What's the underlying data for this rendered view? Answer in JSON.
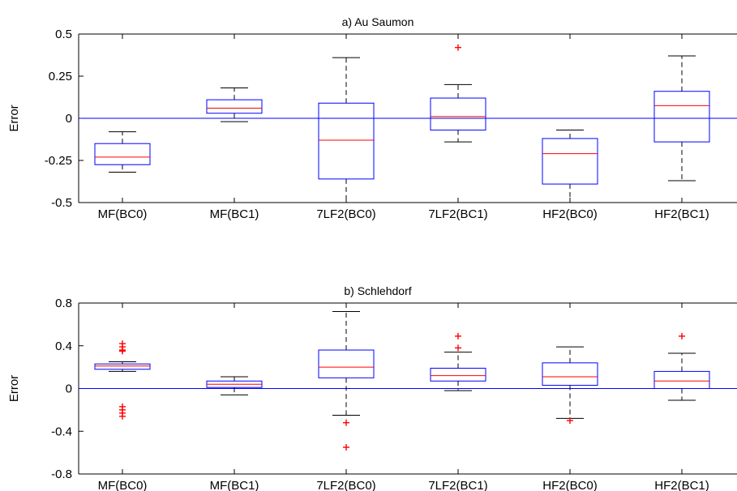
{
  "chart_data": [
    {
      "type": "box",
      "title": "a) Au Saumon",
      "ylabel": "Error",
      "xlabel": "",
      "ylim": [
        -0.5,
        0.5
      ],
      "yticks": [
        -0.5,
        -0.25,
        0,
        0.25,
        0.5
      ],
      "ytick_labels": [
        "-0.5",
        "-0.25",
        "0",
        "0.25",
        "0.5"
      ],
      "grid": false,
      "reference_line": 0,
      "categories": [
        "MF(BC0)",
        "MF(BC1)",
        "7LF2(BC0)",
        "7LF2(BC1)",
        "HF2(BC0)",
        "HF2(BC1)"
      ],
      "boxes": [
        {
          "whisker_low": -0.32,
          "q1": -0.275,
          "median": -0.23,
          "q3": -0.15,
          "whisker_high": -0.08,
          "outliers": []
        },
        {
          "whisker_low": -0.02,
          "q1": 0.03,
          "median": 0.06,
          "q3": 0.11,
          "whisker_high": 0.18,
          "outliers": []
        },
        {
          "whisker_low": -0.5,
          "q1": -0.36,
          "median": -0.13,
          "q3": 0.09,
          "whisker_high": 0.36,
          "outliers": []
        },
        {
          "whisker_low": -0.14,
          "q1": -0.07,
          "median": 0.01,
          "q3": 0.12,
          "whisker_high": 0.2,
          "outliers": [
            0.42
          ]
        },
        {
          "whisker_low": -0.5,
          "q1": -0.39,
          "median": -0.21,
          "q3": -0.12,
          "whisker_high": -0.07,
          "outliers": []
        },
        {
          "whisker_low": -0.37,
          "q1": -0.14,
          "median": 0.075,
          "q3": 0.16,
          "whisker_high": 0.37,
          "outliers": []
        }
      ],
      "colors": {
        "box": "#0000ff",
        "median": "#ff0000",
        "whisker": "#000000",
        "outlier": "#ff0000",
        "reference_line": "#0000ff"
      }
    },
    {
      "type": "box",
      "title": "b) Schlehdorf",
      "ylabel": "Error",
      "xlabel": "",
      "ylim": [
        -0.8,
        0.8
      ],
      "yticks": [
        -0.8,
        -0.4,
        0,
        0.4,
        0.8
      ],
      "ytick_labels": [
        "-0.8",
        "-0.4",
        "0",
        "0.4",
        "0.8"
      ],
      "grid": false,
      "reference_line": 0,
      "categories": [
        "MF(BC0)",
        "MF(BC1)",
        "7LF2(BC0)",
        "7LF2(BC1)",
        "HF2(BC0)",
        "HF2(BC1)"
      ],
      "boxes": [
        {
          "whisker_low": 0.16,
          "q1": 0.18,
          "median": 0.21,
          "q3": 0.23,
          "whisker_high": 0.25,
          "outliers": [
            0.42,
            0.39,
            0.36,
            0.35,
            -0.17,
            -0.2,
            -0.23,
            -0.26
          ]
        },
        {
          "whisker_low": -0.06,
          "q1": 0.01,
          "median": 0.04,
          "q3": 0.07,
          "whisker_high": 0.11,
          "outliers": []
        },
        {
          "whisker_low": -0.25,
          "q1": 0.1,
          "median": 0.2,
          "q3": 0.36,
          "whisker_high": 0.72,
          "outliers": [
            -0.32,
            -0.55
          ]
        },
        {
          "whisker_low": -0.02,
          "q1": 0.07,
          "median": 0.12,
          "q3": 0.19,
          "whisker_high": 0.34,
          "outliers": [
            0.49,
            0.38
          ]
        },
        {
          "whisker_low": -0.28,
          "q1": 0.03,
          "median": 0.11,
          "q3": 0.24,
          "whisker_high": 0.39,
          "outliers": [
            -0.3
          ]
        },
        {
          "whisker_low": -0.11,
          "q1": 0.0,
          "median": 0.07,
          "q3": 0.16,
          "whisker_high": 0.33,
          "outliers": [
            0.49
          ]
        }
      ],
      "colors": {
        "box": "#0000ff",
        "median": "#ff0000",
        "whisker": "#000000",
        "outlier": "#ff0000",
        "reference_line": "#0000ff"
      }
    }
  ]
}
